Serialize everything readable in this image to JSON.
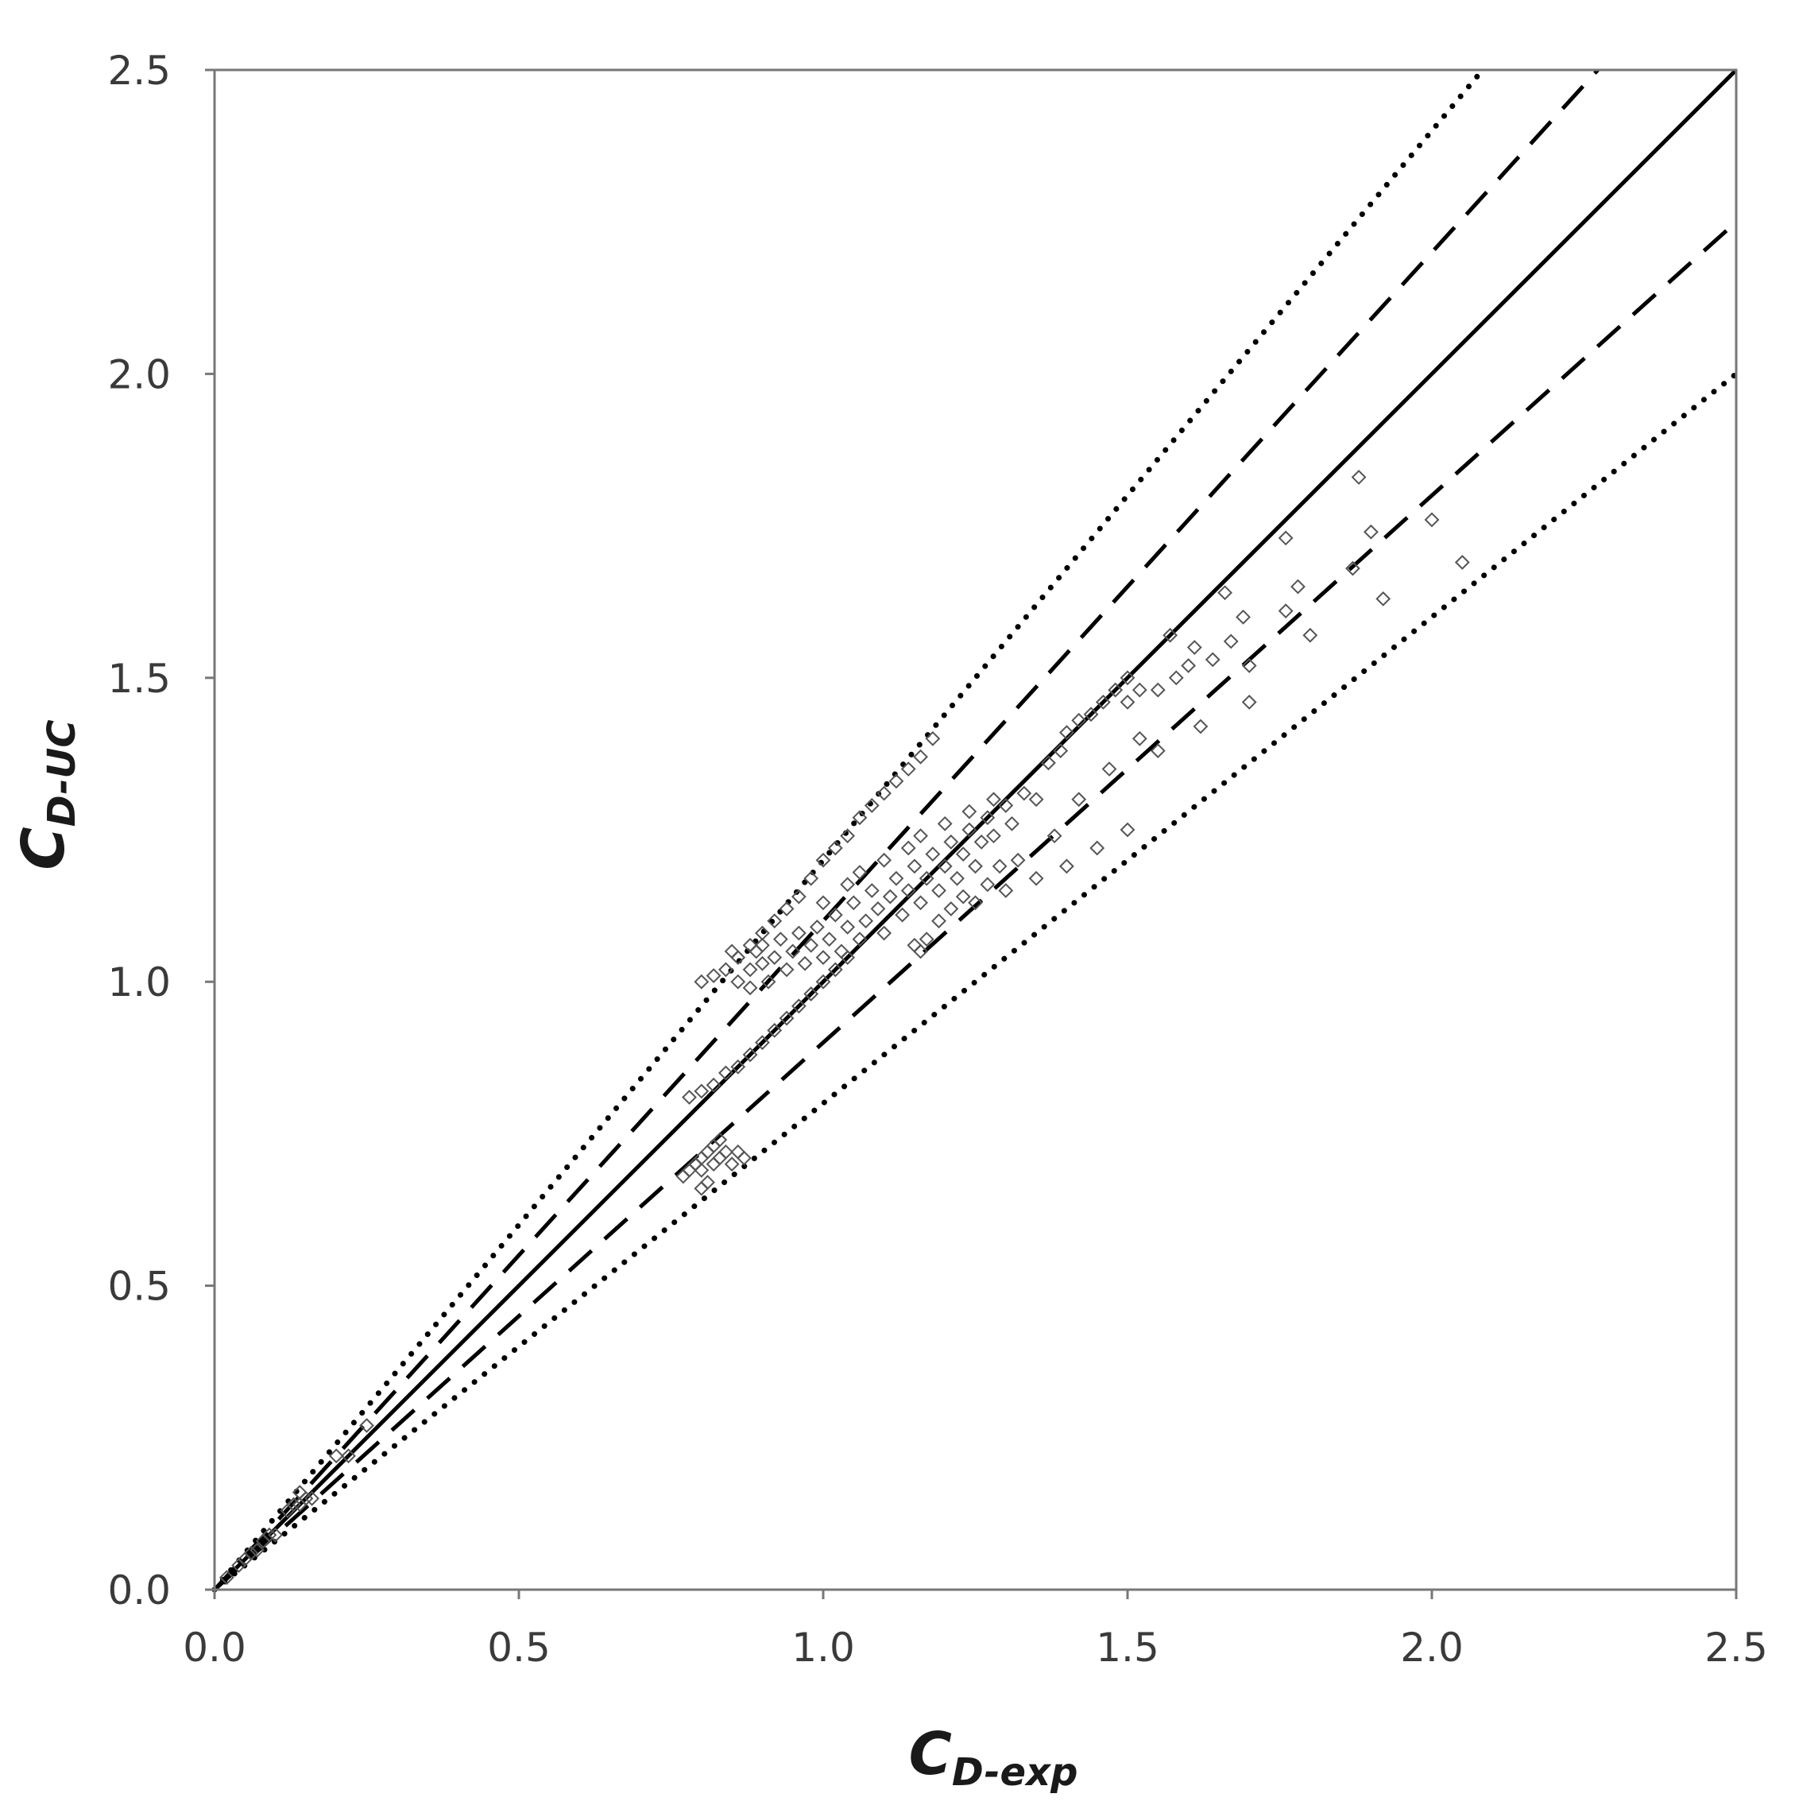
{
  "chart_data": {
    "type": "scatter",
    "title": "",
    "xlabel": {
      "main": "C",
      "sub": "D-exp"
    },
    "ylabel": {
      "main": "C",
      "sub": "D-UC"
    },
    "xlim": [
      0,
      2.5
    ],
    "ylim": [
      0,
      2.5
    ],
    "x_ticks": [
      "0.0",
      "0.5",
      "1.0",
      "1.5",
      "2.0",
      "2.5"
    ],
    "y_ticks": [
      "0.0",
      "0.5",
      "1.0",
      "1.5",
      "2.0",
      "2.5"
    ],
    "grid": false,
    "legend": "none",
    "marker": "diamond-open",
    "colors": {
      "points": "#555555",
      "lines": "#000000",
      "frame": "#777777"
    },
    "reference_lines": [
      {
        "style": "solid",
        "slope": 1.0
      },
      {
        "style": "dashed",
        "slope": 1.1
      },
      {
        "style": "dashed",
        "slope": 0.9
      },
      {
        "style": "dotted",
        "slope": 1.2
      },
      {
        "style": "dotted",
        "slope": 0.8
      }
    ],
    "points": [
      [
        0.02,
        0.02
      ],
      [
        0.04,
        0.04
      ],
      [
        0.05,
        0.05
      ],
      [
        0.06,
        0.06
      ],
      [
        0.07,
        0.065
      ],
      [
        0.08,
        0.08
      ],
      [
        0.09,
        0.09
      ],
      [
        0.1,
        0.09
      ],
      [
        0.12,
        0.13
      ],
      [
        0.13,
        0.14
      ],
      [
        0.14,
        0.14
      ],
      [
        0.15,
        0.15
      ],
      [
        0.14,
        0.16
      ],
      [
        0.16,
        0.15
      ],
      [
        0.2,
        0.22
      ],
      [
        0.22,
        0.22
      ],
      [
        0.25,
        0.27
      ],
      [
        0.77,
        0.68
      ],
      [
        0.78,
        0.69
      ],
      [
        0.79,
        0.7
      ],
      [
        0.8,
        0.69
      ],
      [
        0.8,
        0.71
      ],
      [
        0.81,
        0.72
      ],
      [
        0.82,
        0.7
      ],
      [
        0.82,
        0.73
      ],
      [
        0.83,
        0.71
      ],
      [
        0.83,
        0.74
      ],
      [
        0.84,
        0.72
      ],
      [
        0.85,
        0.7
      ],
      [
        0.8,
        0.66
      ],
      [
        0.81,
        0.67
      ],
      [
        0.86,
        0.72
      ],
      [
        0.87,
        0.71
      ],
      [
        0.78,
        0.81
      ],
      [
        0.8,
        0.82
      ],
      [
        0.82,
        0.83
      ],
      [
        0.84,
        0.85
      ],
      [
        0.86,
        0.86
      ],
      [
        0.88,
        0.88
      ],
      [
        0.9,
        0.9
      ],
      [
        0.92,
        0.92
      ],
      [
        0.94,
        0.94
      ],
      [
        0.96,
        0.96
      ],
      [
        0.98,
        0.98
      ],
      [
        1.0,
        1.0
      ],
      [
        1.02,
        1.02
      ],
      [
        1.04,
        1.04
      ],
      [
        0.8,
        1.0
      ],
      [
        0.82,
        1.01
      ],
      [
        0.84,
        1.02
      ],
      [
        0.86,
        1.04
      ],
      [
        0.88,
        1.06
      ],
      [
        0.9,
        1.08
      ],
      [
        0.92,
        1.1
      ],
      [
        0.94,
        1.12
      ],
      [
        0.96,
        1.14
      ],
      [
        0.98,
        1.17
      ],
      [
        1.0,
        1.2
      ],
      [
        1.02,
        1.22
      ],
      [
        1.04,
        1.24
      ],
      [
        1.06,
        1.27
      ],
      [
        1.08,
        1.29
      ],
      [
        1.1,
        1.31
      ],
      [
        1.12,
        1.33
      ],
      [
        1.14,
        1.35
      ],
      [
        1.16,
        1.37
      ],
      [
        1.18,
        1.4
      ],
      [
        0.85,
        1.05
      ],
      [
        0.86,
        1.0
      ],
      [
        0.88,
        0.99
      ],
      [
        0.88,
        1.02
      ],
      [
        0.89,
        1.05
      ],
      [
        0.9,
        1.03
      ],
      [
        0.9,
        1.06
      ],
      [
        0.91,
        1.0
      ],
      [
        0.92,
        1.04
      ],
      [
        0.93,
        1.07
      ],
      [
        0.94,
        1.02
      ],
      [
        0.95,
        1.05
      ],
      [
        0.96,
        1.08
      ],
      [
        0.97,
        1.03
      ],
      [
        0.98,
        1.06
      ],
      [
        0.99,
        1.09
      ],
      [
        1.0,
        1.04
      ],
      [
        1.01,
        1.07
      ],
      [
        1.02,
        1.11
      ],
      [
        1.03,
        1.05
      ],
      [
        1.04,
        1.09
      ],
      [
        1.05,
        1.13
      ],
      [
        1.06,
        1.07
      ],
      [
        1.07,
        1.1
      ],
      [
        1.08,
        1.15
      ],
      [
        1.09,
        1.12
      ],
      [
        1.1,
        1.08
      ],
      [
        1.11,
        1.14
      ],
      [
        1.12,
        1.17
      ],
      [
        1.13,
        1.11
      ],
      [
        1.14,
        1.15
      ],
      [
        1.15,
        1.19
      ],
      [
        1.16,
        1.13
      ],
      [
        1.17,
        1.17
      ],
      [
        1.18,
        1.21
      ],
      [
        1.19,
        1.15
      ],
      [
        1.2,
        1.19
      ],
      [
        1.21,
        1.23
      ],
      [
        1.22,
        1.17
      ],
      [
        1.23,
        1.21
      ],
      [
        1.24,
        1.25
      ],
      [
        1.25,
        1.19
      ],
      [
        1.26,
        1.23
      ],
      [
        1.27,
        1.27
      ],
      [
        1.28,
        1.24
      ],
      [
        1.3,
        1.29
      ],
      [
        1.31,
        1.26
      ],
      [
        1.33,
        1.31
      ],
      [
        1.35,
        1.3
      ],
      [
        1.37,
        1.36
      ],
      [
        1.39,
        1.38
      ],
      [
        1.4,
        1.41
      ],
      [
        1.42,
        1.43
      ],
      [
        1.44,
        1.44
      ],
      [
        1.46,
        1.46
      ],
      [
        1.48,
        1.48
      ],
      [
        1.5,
        1.5
      ],
      [
        1.0,
        1.13
      ],
      [
        1.04,
        1.16
      ],
      [
        1.06,
        1.18
      ],
      [
        1.1,
        1.2
      ],
      [
        1.14,
        1.22
      ],
      [
        1.16,
        1.24
      ],
      [
        1.2,
        1.26
      ],
      [
        1.24,
        1.28
      ],
      [
        1.28,
        1.3
      ],
      [
        1.15,
        1.06
      ],
      [
        1.16,
        1.05
      ],
      [
        1.17,
        1.07
      ],
      [
        1.19,
        1.1
      ],
      [
        1.21,
        1.12
      ],
      [
        1.23,
        1.14
      ],
      [
        1.25,
        1.13
      ],
      [
        1.27,
        1.16
      ],
      [
        1.29,
        1.19
      ],
      [
        1.3,
        1.15
      ],
      [
        1.32,
        1.2
      ],
      [
        1.35,
        1.17
      ],
      [
        1.38,
        1.24
      ],
      [
        1.4,
        1.19
      ],
      [
        1.42,
        1.3
      ],
      [
        1.45,
        1.22
      ],
      [
        1.47,
        1.35
      ],
      [
        1.5,
        1.25
      ],
      [
        1.52,
        1.4
      ],
      [
        1.55,
        1.38
      ],
      [
        1.5,
        1.46
      ],
      [
        1.52,
        1.48
      ],
      [
        1.55,
        1.48
      ],
      [
        1.57,
        1.57
      ],
      [
        1.58,
        1.5
      ],
      [
        1.6,
        1.52
      ],
      [
        1.61,
        1.55
      ],
      [
        1.62,
        1.42
      ],
      [
        1.64,
        1.53
      ],
      [
        1.66,
        1.64
      ],
      [
        1.67,
        1.56
      ],
      [
        1.69,
        1.6
      ],
      [
        1.7,
        1.52
      ],
      [
        1.7,
        1.46
      ],
      [
        1.76,
        1.73
      ],
      [
        1.76,
        1.61
      ],
      [
        1.78,
        1.65
      ],
      [
        1.8,
        1.57
      ],
      [
        1.87,
        1.68
      ],
      [
        1.88,
        1.83
      ],
      [
        1.9,
        1.74
      ],
      [
        1.92,
        1.63
      ],
      [
        2.0,
        1.76
      ],
      [
        2.05,
        1.69
      ]
    ]
  }
}
